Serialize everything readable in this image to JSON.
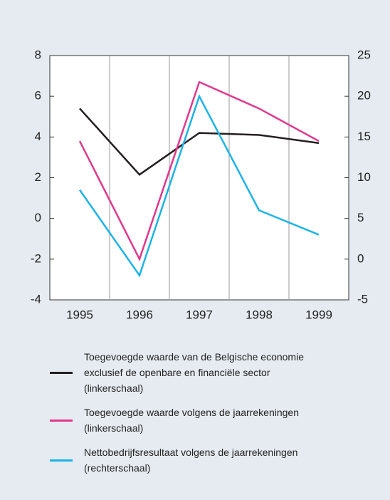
{
  "chart_data": {
    "type": "line",
    "categories": [
      "1995",
      "1996",
      "1997",
      "1998",
      "1999"
    ],
    "series": [
      {
        "name": "Toegevoegde waarde van de Belgische economie exclusief de openbare en financiële sector (linkerschaal)",
        "color": "#231f20",
        "values": [
          5.4,
          2.15,
          4.2,
          4.1,
          3.7
        ]
      },
      {
        "name": "Toegevoegde waarde volgens de jaarrekeningen (linkerschaal)",
        "color": "#e2378c",
        "values": [
          3.8,
          -2.0,
          6.7,
          5.4,
          3.8
        ]
      },
      {
        "name": "Nettobedrijfsresultaat volgens de jaarrekeningen (rechterschaal)",
        "color": "#1cb3e8",
        "axis": "y2",
        "values": [
          8.5,
          -2,
          20,
          6,
          3
        ]
      }
    ],
    "ylim": [
      -4,
      8
    ],
    "yticks": [
      -4,
      -2,
      0,
      2,
      4,
      6,
      8
    ],
    "y2lim": [
      -5,
      25
    ],
    "y2ticks": [
      -5,
      0,
      5,
      10,
      15,
      20,
      25
    ]
  }
}
